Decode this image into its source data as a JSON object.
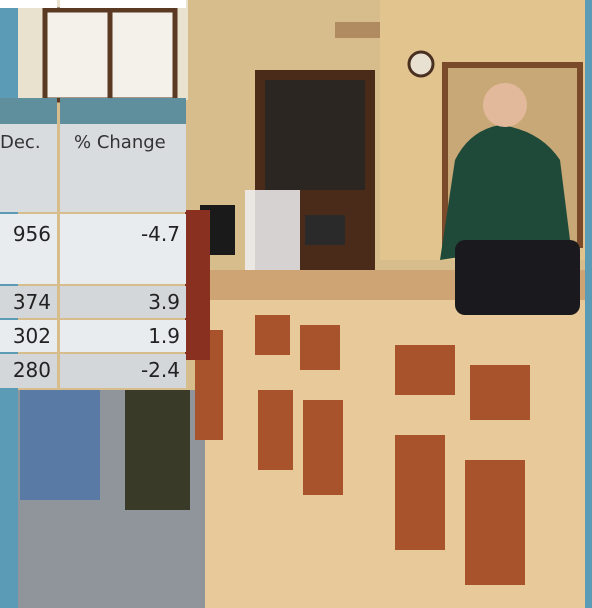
{
  "table": {
    "headers": [
      "Dec.",
      "% Change"
    ],
    "rows": [
      [
        "956",
        "-4.7"
      ],
      [
        "374",
        "3.9"
      ],
      [
        "302",
        "1.9"
      ],
      [
        "280",
        "-2.4"
      ]
    ]
  }
}
